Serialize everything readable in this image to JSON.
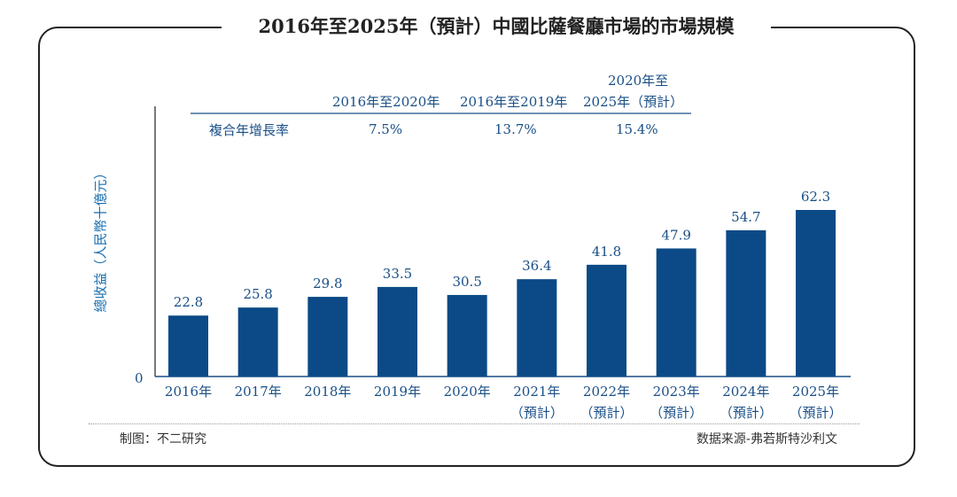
{
  "chart_data": {
    "type": "bar",
    "title": "2016年至2025年（預計）中國比薩餐廳市場的市場規模",
    "ylabel": "總收益（人民幣十億元）",
    "xlabel": "",
    "categories": [
      "2016年",
      "2017年",
      "2018年",
      "2019年",
      "2020年",
      "2021年",
      "2022年",
      "2023年",
      "2024年",
      "2025年"
    ],
    "category_sublabels": [
      "",
      "",
      "",
      "",
      "",
      "（預計）",
      "（預計）",
      "（預計）",
      "（預計）",
      "（預計）"
    ],
    "values": [
      22.8,
      25.8,
      29.8,
      33.5,
      30.5,
      36.4,
      41.8,
      47.9,
      54.7,
      62.3
    ],
    "y_tick_labels": [
      "0"
    ],
    "ylim": [
      0,
      70
    ],
    "grid": false,
    "bar_color": "#0b4a86",
    "cagr_table": {
      "row_label": "複合年增長率",
      "columns": [
        {
          "header": "2016年至2020年",
          "value": "7.5%"
        },
        {
          "header": "2016年至2019年",
          "value": "13.7%"
        },
        {
          "header_line1": "2020年至",
          "header_line2": "2025年（預計）",
          "value": "15.4%"
        }
      ]
    }
  },
  "footer": {
    "left": "制图：不二研究",
    "right": "数据来源-弗若斯特沙利文"
  },
  "watermark": "不二研究"
}
